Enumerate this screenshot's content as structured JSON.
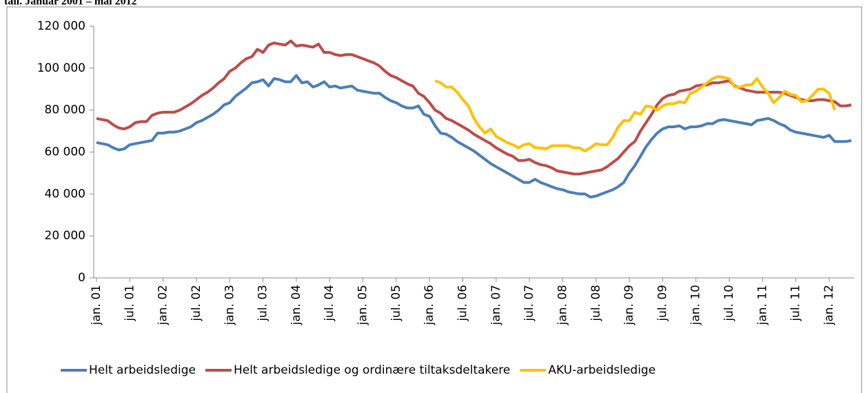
{
  "chart_data": {
    "type": "line",
    "title": "tall. Januar 2001 – mai 2012",
    "categories": [
      "jan. 01",
      null,
      null,
      null,
      null,
      null,
      "jul. 01",
      null,
      null,
      null,
      null,
      null,
      "jan. 02",
      null,
      null,
      null,
      null,
      null,
      "jul. 02",
      null,
      null,
      null,
      null,
      null,
      "jan. 03",
      null,
      null,
      null,
      null,
      null,
      "jul. 03",
      null,
      null,
      null,
      null,
      null,
      "jan. 04",
      null,
      null,
      null,
      null,
      null,
      "jul. 04",
      null,
      null,
      null,
      null,
      null,
      "jan. 05",
      null,
      null,
      null,
      null,
      null,
      "jul. 05",
      null,
      null,
      null,
      null,
      null,
      "jan. 06",
      null,
      null,
      null,
      null,
      null,
      "jul. 06",
      null,
      null,
      null,
      null,
      null,
      "jan. 07",
      null,
      null,
      null,
      null,
      null,
      "jul. 07",
      null,
      null,
      null,
      null,
      null,
      "jan. 08",
      null,
      null,
      null,
      null,
      null,
      "jul. 08",
      null,
      null,
      null,
      null,
      null,
      "jan. 09",
      null,
      null,
      null,
      null,
      null,
      "jul. 09",
      null,
      null,
      null,
      null,
      null,
      "jan. 10",
      null,
      null,
      null,
      null,
      null,
      "jul. 10",
      null,
      null,
      null,
      null,
      null,
      "jan. 11",
      null,
      null,
      null,
      null,
      null,
      "jul. 11",
      null,
      null,
      null,
      null,
      null,
      "jan. 12",
      null,
      null,
      null,
      null
    ],
    "series": [
      {
        "name": "Helt arbeidsledige",
        "color": "#4a7ebb",
        "values": [
          64500,
          64000,
          63500,
          62000,
          61000,
          61500,
          63500,
          64000,
          64500,
          65000,
          65500,
          69000,
          69000,
          69500,
          69500,
          70000,
          71000,
          72000,
          74000,
          75000,
          76500,
          78000,
          80000,
          82500,
          83500,
          86500,
          88500,
          90500,
          93000,
          93500,
          94500,
          91500,
          95000,
          94500,
          93500,
          93500,
          96500,
          93000,
          93500,
          91000,
          92000,
          93500,
          91000,
          91500,
          90500,
          91000,
          91500,
          89500,
          89000,
          88500,
          88000,
          88000,
          86000,
          84500,
          83500,
          82000,
          81000,
          81000,
          82000,
          78000,
          77000,
          72500,
          69000,
          68500,
          67000,
          65000,
          63500,
          62000,
          60500,
          58500,
          56500,
          54500,
          53000,
          51500,
          50000,
          48500,
          47000,
          45500,
          45500,
          47000,
          45500,
          44500,
          43500,
          42500,
          42000,
          41000,
          40500,
          40000,
          40000,
          38500,
          39000,
          40000,
          41000,
          42000,
          43500,
          45500,
          50000,
          53500,
          58000,
          62500,
          66000,
          69000,
          71000,
          72000,
          72000,
          72500,
          71000,
          72000,
          72000,
          72500,
          73500,
          73500,
          75000,
          75500,
          75000,
          74500,
          74000,
          73500,
          73000,
          75000,
          75500,
          76000,
          75000,
          73500,
          72500,
          70500,
          69500,
          69000,
          68500,
          68000,
          67500,
          67000,
          68000,
          65000,
          65000,
          65000,
          65500
        ]
      },
      {
        "name": "Helt arbeidsledige og ordinære tiltaksdeltakere",
        "color": "#be4b48",
        "values": [
          76000,
          75500,
          75000,
          73000,
          71500,
          71000,
          72000,
          74000,
          74500,
          74500,
          77500,
          78500,
          79000,
          79000,
          79000,
          80000,
          81500,
          83000,
          85000,
          87000,
          88500,
          90500,
          93000,
          95000,
          98500,
          100000,
          102500,
          104500,
          105500,
          109000,
          107500,
          111000,
          112000,
          111500,
          111000,
          113000,
          110500,
          111000,
          110500,
          110000,
          111500,
          107500,
          107500,
          106500,
          106000,
          106500,
          106500,
          105500,
          104500,
          103500,
          102500,
          101000,
          98500,
          96500,
          95500,
          94000,
          92500,
          91500,
          88000,
          86500,
          83500,
          80000,
          78500,
          76000,
          75000,
          73500,
          72000,
          70500,
          68500,
          67000,
          65500,
          64000,
          62000,
          60500,
          59000,
          58000,
          56000,
          56000,
          56500,
          55000,
          54000,
          53500,
          52500,
          51000,
          50500,
          50000,
          49500,
          49500,
          50000,
          50500,
          51000,
          51500,
          53000,
          55000,
          57000,
          60000,
          63000,
          65000,
          70000,
          74000,
          78000,
          82500,
          85500,
          87000,
          87500,
          89000,
          89500,
          90000,
          91500,
          92000,
          92000,
          93000,
          93000,
          93500,
          94000,
          91500,
          90500,
          89500,
          89000,
          88500,
          88500,
          88500,
          88500,
          88500,
          88000,
          87000,
          86000,
          85000,
          84500,
          84500,
          85000,
          85000,
          84500,
          84000,
          82000,
          82000,
          82500
        ]
      },
      {
        "name": "AKU-arbeidsledige",
        "color": "#ffc000",
        "values": [
          null,
          null,
          null,
          null,
          null,
          null,
          null,
          null,
          null,
          null,
          null,
          null,
          null,
          null,
          null,
          null,
          null,
          null,
          null,
          null,
          null,
          null,
          null,
          null,
          null,
          null,
          null,
          null,
          null,
          null,
          null,
          null,
          null,
          null,
          null,
          null,
          null,
          null,
          null,
          null,
          null,
          null,
          null,
          null,
          null,
          null,
          null,
          null,
          null,
          null,
          null,
          null,
          null,
          null,
          null,
          null,
          null,
          null,
          null,
          null,
          null,
          94000,
          93000,
          91000,
          91000,
          88500,
          85000,
          82000,
          76000,
          72000,
          69000,
          71000,
          67500,
          66000,
          64500,
          63500,
          62000,
          63500,
          64000,
          62000,
          62000,
          61500,
          63000,
          63000,
          63000,
          63000,
          62000,
          62000,
          60500,
          62000,
          64000,
          63500,
          63500,
          67000,
          72000,
          75000,
          75000,
          79000,
          78000,
          82000,
          81500,
          80000,
          82000,
          83000,
          83000,
          84000,
          83500,
          88000,
          89000,
          91000,
          93000,
          95000,
          96000,
          95500,
          95000,
          91000,
          91000,
          92000,
          92000,
          95000,
          91000,
          88000,
          83500,
          86000,
          89000,
          87500,
          87000,
          84000,
          84500,
          87000,
          90000,
          90000,
          88000,
          80000,
          null,
          null,
          null
        ]
      }
    ],
    "ylim": [
      0,
      120000
    ],
    "yticks": [
      0,
      {
        "value": 20000,
        "label": "20 000"
      },
      {
        "value": 40000,
        "label": "40 000"
      },
      {
        "value": 60000,
        "label": "60 000"
      },
      {
        "value": 80000,
        "label": "80 000"
      },
      {
        "value": 100000,
        "label": "100 000"
      },
      {
        "value": 120000,
        "label": "120 000"
      }
    ],
    "grid": false,
    "legend": "bottom"
  }
}
